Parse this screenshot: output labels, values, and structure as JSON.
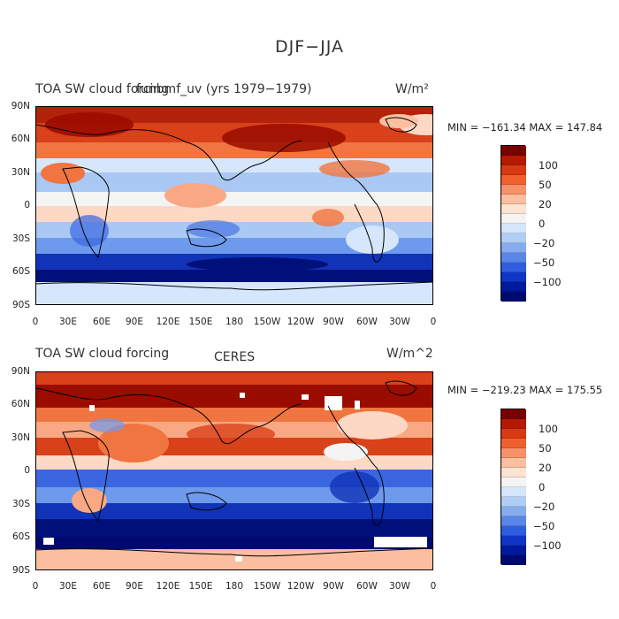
{
  "main_title": "DJF−JJA",
  "panels": [
    {
      "left_title": "TOA SW cloud forcing",
      "center_title": "funbmf_uv (yrs 1979−1979)",
      "units": "W/m²",
      "min_max": "MIN = −161.34  MAX = 147.84"
    },
    {
      "left_title": "TOA SW cloud forcing",
      "center_title": "CERES",
      "units": "W/m^2",
      "min_max": "MIN = −219.23  MAX = 175.55"
    }
  ],
  "lat_labels": [
    "90N",
    "60N",
    "30N",
    "0",
    "30S",
    "60S",
    "90S"
  ],
  "lon_labels": [
    "0",
    "30E",
    "60E",
    "90E",
    "120E",
    "150E",
    "180",
    "150W",
    "120W",
    "90W",
    "60W",
    "30W",
    "0"
  ],
  "colorbar": {
    "labels": [
      "100",
      "50",
      "20",
      "0",
      "−20",
      "−50",
      "−100"
    ],
    "colors": [
      "#7a0000",
      "#b31a00",
      "#d63a12",
      "#f0602f",
      "#f6916a",
      "#fbbfa0",
      "#fde3d2",
      "#f4f4f4",
      "#d6e6fb",
      "#b0cdf6",
      "#86acef",
      "#5a86e8",
      "#2f5de0",
      "#0e35c6",
      "#001a9c",
      "#000a6e"
    ]
  },
  "palette": {
    "deep_red": "#9a0c00",
    "red": "#d8411a",
    "orange": "#f07540",
    "salmon": "#f9a884",
    "peach": "#fdd8c4",
    "white": "#f6f6f6",
    "pale_blue": "#d6e6fb",
    "light_blue": "#a9c8f4",
    "mid_blue": "#6d9aec",
    "blue": "#3a67e0",
    "dark_blue": "#1033b8",
    "navy": "#00107a"
  }
}
